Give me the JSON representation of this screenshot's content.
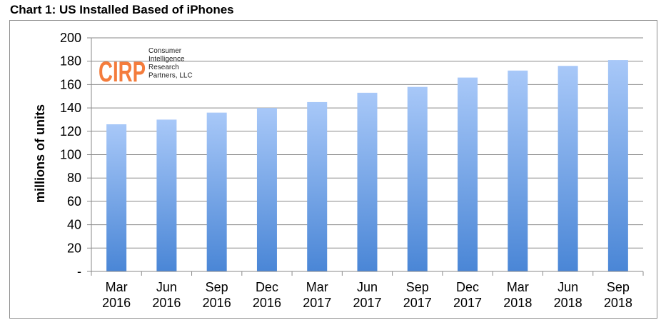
{
  "chart_data": {
    "type": "bar",
    "title": "Chart 1: US Installed Based of iPhones",
    "xlabel": "",
    "ylabel": "millions of units",
    "categories": [
      [
        "Mar",
        "2016"
      ],
      [
        "Jun",
        "2016"
      ],
      [
        "Sep",
        "2016"
      ],
      [
        "Dec",
        "2016"
      ],
      [
        "Mar",
        "2017"
      ],
      [
        "Jun",
        "2017"
      ],
      [
        "Sep",
        "2017"
      ],
      [
        "Dec",
        "2017"
      ],
      [
        "Mar",
        "2018"
      ],
      [
        "Jun",
        "2018"
      ],
      [
        "Sep",
        "2018"
      ]
    ],
    "values": [
      126,
      130,
      136,
      140,
      145,
      153,
      158,
      166,
      172,
      176,
      181
    ],
    "ylim": [
      0,
      200
    ],
    "yticks": [
      "-",
      "20",
      "40",
      "60",
      "80",
      "100",
      "120",
      "140",
      "160",
      "180",
      "200"
    ],
    "grid": true,
    "legend": "none",
    "bar_color_top": "#a8c8f8",
    "bar_color_bottom": "#4a86d6"
  },
  "logo": {
    "mark": "CIRP",
    "lines": [
      "Consumer",
      "Intelligence",
      "Research",
      "Partners, LLC"
    ],
    "color": "#f47c3c"
  }
}
